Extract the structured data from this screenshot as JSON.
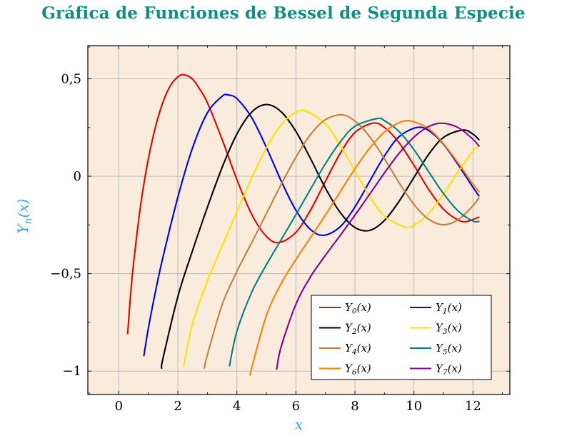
{
  "title": {
    "text": "Gráfica de Funciones de Bessel de Segunda Especie",
    "color": "#0e8f83"
  },
  "axes": {
    "xlabel": "x",
    "ylabel": {
      "base": "Y",
      "sub": "n",
      "args": "(x)"
    },
    "label_color": "#38a6e8",
    "tick_color": "#000000",
    "plot_bg": "#faecdd",
    "grid_color": "#b3b3b3",
    "frame_color": "#000000",
    "legend_bg": "#ffffff",
    "legend_border": "#000000"
  },
  "chart_data": {
    "type": "line",
    "title": "Gráfica de Funciones de Bessel de Segunda Especie",
    "xlabel": "x",
    "ylabel": "Y_n(x)",
    "xlim": [
      -1.05,
      13.25
    ],
    "ylim": [
      -1.12,
      0.67
    ],
    "grid": true,
    "legend_position": "lower right",
    "xticks": [
      0,
      2,
      4,
      6,
      8,
      10,
      12
    ],
    "xtick_labels": [
      "0",
      "2",
      "4",
      "6",
      "8",
      "10",
      "12"
    ],
    "yticks": [
      -1,
      -0.5,
      0,
      0.5
    ],
    "ytick_labels": [
      "−1",
      "−0,5",
      "0",
      "0,5"
    ],
    "series": [
      {
        "name": "Y0",
        "label": {
          "base": "Y",
          "sub": "0",
          "args": "(x)"
        },
        "color": "#e60000",
        "points": [
          [
            0.3,
            -0.807
          ],
          [
            0.4,
            -0.606
          ],
          [
            0.5,
            -0.445
          ],
          [
            0.75,
            -0.137
          ],
          [
            1,
            0.088
          ],
          [
            1.25,
            0.258
          ],
          [
            1.5,
            0.382
          ],
          [
            1.75,
            0.465
          ],
          [
            2,
            0.51
          ],
          [
            2.2,
            0.521
          ],
          [
            2.5,
            0.498
          ],
          [
            2.75,
            0.445
          ],
          [
            3,
            0.377
          ],
          [
            3.5,
            0.189
          ],
          [
            4,
            -0.017
          ],
          [
            4.5,
            -0.195
          ],
          [
            5,
            -0.309
          ],
          [
            5.43,
            -0.34
          ],
          [
            6,
            -0.288
          ],
          [
            6.5,
            -0.173
          ],
          [
            7,
            -0.026
          ],
          [
            7.5,
            0.117
          ],
          [
            8,
            0.224
          ],
          [
            8.6,
            0.272
          ],
          [
            9,
            0.25
          ],
          [
            9.5,
            0.171
          ],
          [
            10,
            0.056
          ],
          [
            10.5,
            -0.068
          ],
          [
            11,
            -0.169
          ],
          [
            11.5,
            -0.225
          ],
          [
            11.8,
            -0.232
          ],
          [
            12.2,
            -0.21
          ]
        ]
      },
      {
        "name": "Y1",
        "label": {
          "base": "Y",
          "sub": "1",
          "args": "(x)"
        },
        "color": "#0000e6",
        "points": [
          [
            0.85,
            -0.92
          ],
          [
            1,
            -0.781
          ],
          [
            1.25,
            -0.585
          ],
          [
            1.5,
            -0.412
          ],
          [
            2,
            -0.107
          ],
          [
            2.5,
            0.146
          ],
          [
            3,
            0.325
          ],
          [
            3.5,
            0.41
          ],
          [
            3.7,
            0.417
          ],
          [
            4,
            0.398
          ],
          [
            4.5,
            0.301
          ],
          [
            5,
            0.148
          ],
          [
            5.5,
            -0.024
          ],
          [
            6,
            -0.175
          ],
          [
            6.5,
            -0.274
          ],
          [
            6.95,
            -0.303
          ],
          [
            7.5,
            -0.259
          ],
          [
            8,
            -0.158
          ],
          [
            8.5,
            -0.026
          ],
          [
            9,
            0.104
          ],
          [
            9.5,
            0.203
          ],
          [
            10.1,
            0.25
          ],
          [
            10.5,
            0.234
          ],
          [
            11,
            0.164
          ],
          [
            11.5,
            0.058
          ],
          [
            12,
            -0.057
          ],
          [
            12.2,
            -0.1
          ]
        ]
      },
      {
        "name": "Y2",
        "label": {
          "base": "Y",
          "sub": "2",
          "args": "(x)"
        },
        "color": "#000000",
        "points": [
          [
            1.45,
            -0.985
          ],
          [
            1.5,
            -0.932
          ],
          [
            2,
            -0.617
          ],
          [
            2.5,
            -0.381
          ],
          [
            3,
            -0.16
          ],
          [
            3.5,
            0.045
          ],
          [
            4,
            0.216
          ],
          [
            4.5,
            0.329
          ],
          [
            5,
            0.368
          ],
          [
            5.5,
            0.331
          ],
          [
            6,
            0.23
          ],
          [
            6.5,
            0.089
          ],
          [
            7,
            -0.061
          ],
          [
            7.5,
            -0.186
          ],
          [
            8,
            -0.263
          ],
          [
            8.5,
            -0.278
          ],
          [
            9,
            -0.227
          ],
          [
            9.5,
            -0.128
          ],
          [
            10,
            -0.006
          ],
          [
            10.5,
            0.112
          ],
          [
            11,
            0.199
          ],
          [
            11.65,
            0.237
          ],
          [
            12,
            0.216
          ],
          [
            12.2,
            0.188
          ]
        ]
      },
      {
        "name": "Y3",
        "label": {
          "base": "Y",
          "sub": "3",
          "args": "(x)"
        },
        "color": "#ffe100",
        "points": [
          [
            2.2,
            -0.975
          ],
          [
            2.5,
            -0.756
          ],
          [
            3,
            -0.539
          ],
          [
            3.5,
            -0.358
          ],
          [
            4,
            -0.182
          ],
          [
            4.5,
            -0.009
          ],
          [
            5,
            0.146
          ],
          [
            5.5,
            0.264
          ],
          [
            6,
            0.328
          ],
          [
            6.35,
            0.334
          ],
          [
            7,
            0.268
          ],
          [
            7.5,
            0.16
          ],
          [
            8,
            0.027
          ],
          [
            8.5,
            -0.104
          ],
          [
            9,
            -0.205
          ],
          [
            9.7,
            -0.261
          ],
          [
            10,
            -0.251
          ],
          [
            10.5,
            -0.191
          ],
          [
            11,
            -0.092
          ],
          [
            11.5,
            0.024
          ],
          [
            12,
            0.129
          ],
          [
            12.2,
            0.158
          ]
        ]
      },
      {
        "name": "Y4",
        "label": {
          "base": "Y",
          "sub": "4",
          "args": "(x)"
        },
        "color": "#bf8040",
        "points": [
          [
            2.9,
            -0.985
          ],
          [
            3,
            -0.917
          ],
          [
            3.5,
            -0.66
          ],
          [
            4,
            -0.489
          ],
          [
            4.5,
            -0.341
          ],
          [
            5,
            -0.192
          ],
          [
            5.5,
            -0.042
          ],
          [
            6,
            0.098
          ],
          [
            6.5,
            0.215
          ],
          [
            7,
            0.29
          ],
          [
            7.55,
            0.315
          ],
          [
            8,
            0.283
          ],
          [
            8.5,
            0.203
          ],
          [
            9,
            0.09
          ],
          [
            9.5,
            -0.034
          ],
          [
            10,
            -0.145
          ],
          [
            10.5,
            -0.221
          ],
          [
            11,
            -0.249
          ],
          [
            11.5,
            -0.223
          ],
          [
            12,
            -0.151
          ],
          [
            12.2,
            -0.111
          ]
        ]
      },
      {
        "name": "Y5",
        "label": {
          "base": "Y",
          "sub": "5",
          "args": "(x)"
        },
        "color": "#008080",
        "points": [
          [
            3.75,
            -0.973
          ],
          [
            4,
            -0.796
          ],
          [
            4.5,
            -0.596
          ],
          [
            5,
            -0.454
          ],
          [
            5.5,
            -0.326
          ],
          [
            6,
            -0.197
          ],
          [
            6.5,
            -0.065
          ],
          [
            7,
            0.064
          ],
          [
            7.5,
            0.175
          ],
          [
            8,
            0.256
          ],
          [
            8.75,
            0.296
          ],
          [
            9,
            0.285
          ],
          [
            9.5,
            0.229
          ],
          [
            10,
            0.136
          ],
          [
            10.5,
            0.023
          ],
          [
            11,
            -0.089
          ],
          [
            11.5,
            -0.179
          ],
          [
            12,
            -0.23
          ],
          [
            12.2,
            -0.232
          ]
        ]
      },
      {
        "name": "Y6",
        "label": {
          "base": "Y",
          "sub": "6",
          "args": "(x)"
        },
        "color": "#ff8000",
        "points": [
          [
            4.45,
            -1.02
          ],
          [
            4.5,
            -0.985
          ],
          [
            5,
            -0.715
          ],
          [
            5.5,
            -0.551
          ],
          [
            6,
            -0.427
          ],
          [
            6.5,
            -0.314
          ],
          [
            7,
            -0.199
          ],
          [
            7.5,
            -0.08
          ],
          [
            8,
            0.038
          ],
          [
            8.5,
            0.144
          ],
          [
            9,
            0.227
          ],
          [
            9.5,
            0.275
          ],
          [
            9.9,
            0.283
          ],
          [
            10.5,
            0.243
          ],
          [
            11,
            0.167
          ],
          [
            11.5,
            0.067
          ],
          [
            12,
            -0.04
          ],
          [
            12.2,
            -0.079
          ]
        ]
      },
      {
        "name": "Y7",
        "label": {
          "base": "Y",
          "sub": "7",
          "args": "(x)"
        },
        "color": "#800099",
        "points": [
          [
            5.35,
            -0.99
          ],
          [
            5.5,
            -0.875
          ],
          [
            6,
            -0.657
          ],
          [
            6.5,
            -0.515
          ],
          [
            7,
            -0.406
          ],
          [
            7.5,
            -0.304
          ],
          [
            8,
            -0.2
          ],
          [
            8.5,
            -0.092
          ],
          [
            9,
            0.017
          ],
          [
            9.5,
            0.118
          ],
          [
            10,
            0.201
          ],
          [
            10.5,
            0.255
          ],
          [
            10.95,
            0.272
          ],
          [
            11.5,
            0.249
          ],
          [
            12,
            0.19
          ],
          [
            12.2,
            0.155
          ]
        ]
      }
    ]
  }
}
